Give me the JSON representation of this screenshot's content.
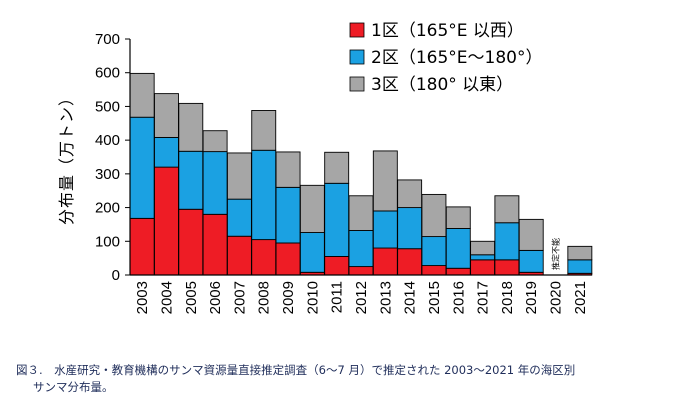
{
  "chart_data": {
    "type": "bar",
    "stacked": true,
    "ylabel": "分布量（万トン）",
    "ylim": [
      0,
      700
    ],
    "yticks": [
      0,
      100,
      200,
      300,
      400,
      500,
      600,
      700
    ],
    "categories": [
      "2003",
      "2004",
      "2005",
      "2006",
      "2007",
      "2008",
      "2009",
      "2010",
      "2011",
      "2012",
      "2013",
      "2014",
      "2015",
      "2016",
      "2017",
      "2018",
      "2019",
      "2020",
      "2021"
    ],
    "series": [
      {
        "name": "1区（165°E 以西）",
        "color": "#ee1c25",
        "values": [
          168,
          320,
          195,
          180,
          115,
          105,
          95,
          8,
          55,
          25,
          80,
          78,
          28,
          20,
          45,
          45,
          8,
          null,
          5
        ]
      },
      {
        "name": "2区（165°E～180°）",
        "color": "#1ba1e2",
        "values": [
          300,
          88,
          172,
          186,
          110,
          265,
          165,
          118,
          217,
          107,
          110,
          122,
          86,
          118,
          15,
          110,
          65,
          null,
          40
        ]
      },
      {
        "name": "3区（180° 以東）",
        "color": "#a6a6a6",
        "values": [
          130,
          130,
          142,
          62,
          137,
          118,
          105,
          140,
          92,
          103,
          178,
          82,
          125,
          64,
          40,
          80,
          92,
          null,
          40
        ]
      }
    ],
    "annotations": [
      {
        "category": "2020",
        "text": "推定不能"
      }
    ],
    "legend_position": "top-right"
  },
  "caption": {
    "line1": "図３.　水産研究・教育機構のサンマ資源量直接推定調査（6～7 月）で推定された 2003～2021 年の海区別",
    "line2": "サンマ分布量。"
  }
}
